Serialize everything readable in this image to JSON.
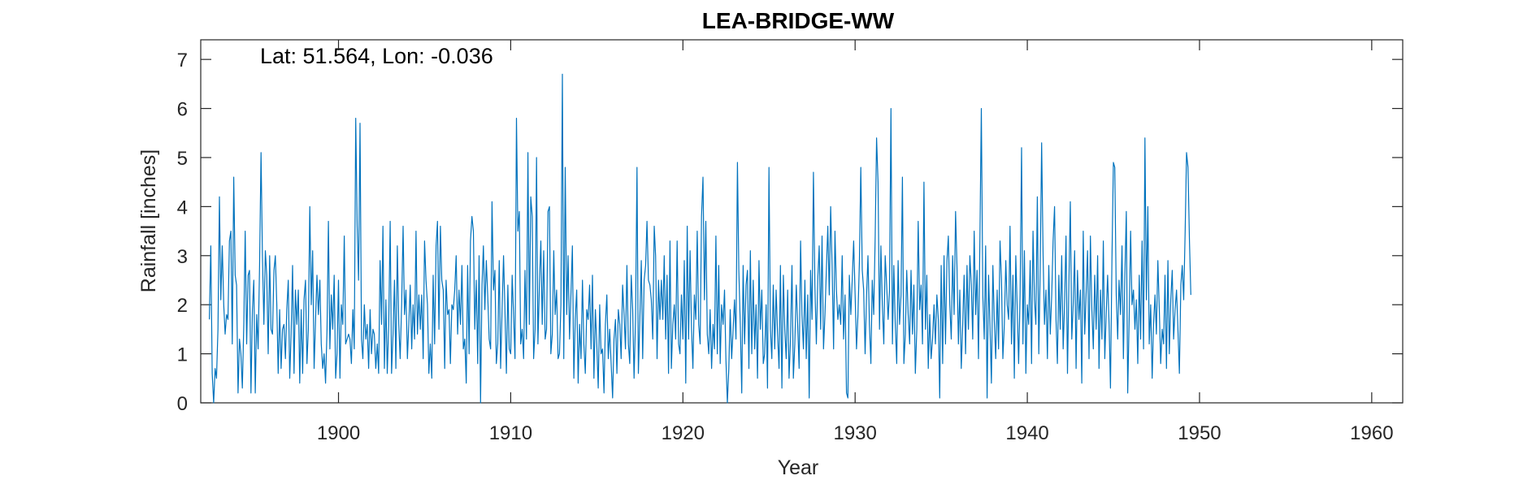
{
  "chart_data": {
    "type": "line",
    "title": "LEA-BRIDGE-WW",
    "annotation": "Lat: 51.564, Lon: -0.036",
    "xlabel": "Year",
    "ylabel": "Rainfall [inches]",
    "xlim": [
      1892.0,
      1961.8
    ],
    "ylim": [
      0,
      7.4
    ],
    "xticks": [
      1900,
      1910,
      1920,
      1930,
      1940,
      1950,
      1960
    ],
    "yticks": [
      0,
      1,
      2,
      3,
      4,
      5,
      6,
      7
    ],
    "grid": false,
    "series": [
      {
        "color": "#0072BD",
        "x_start": 1892.5,
        "x_step_years": 0.08333,
        "values": [
          1.7,
          3.2,
          0.6,
          0.0,
          0.7,
          0.5,
          1.5,
          4.2,
          2.1,
          3.2,
          2.0,
          1.4,
          1.8,
          1.7,
          3.3,
          3.5,
          1.2,
          4.6,
          2.6,
          2.4,
          0.2,
          1.3,
          1.0,
          0.3,
          1.6,
          3.5,
          1.2,
          2.6,
          2.7,
          0.2,
          1.9,
          2.5,
          0.2,
          1.8,
          1.1,
          2.8,
          5.1,
          3.0,
          1.6,
          3.1,
          2.6,
          1.0,
          3.0,
          1.5,
          1.4,
          2.7,
          3.0,
          2.0,
          0.6,
          1.9,
          0.7,
          1.5,
          1.6,
          0.9,
          1.9,
          2.5,
          0.5,
          1.4,
          2.8,
          0.6,
          2.3,
          1.6,
          2.3,
          0.4,
          1.9,
          0.6,
          2.1,
          2.5,
          0.8,
          1.5,
          4.0,
          2.0,
          3.1,
          0.7,
          1.7,
          2.6,
          1.8,
          2.5,
          1.2,
          0.7,
          1.0,
          0.4,
          1.5,
          3.7,
          1.1,
          2.2,
          1.5,
          2.6,
          0.5,
          1.0,
          2.5,
          0.5,
          2.0,
          1.6,
          3.4,
          1.2,
          1.3,
          1.4,
          1.3,
          0.8,
          1.9,
          1.1,
          5.8,
          3.6,
          2.5,
          5.7,
          1.3,
          0.9,
          2.0,
          1.3,
          1.6,
          0.7,
          1.9,
          1.0,
          1.5,
          1.4,
          0.7,
          1.2,
          0.6,
          2.9,
          1.6,
          3.6,
          0.7,
          2.1,
          0.6,
          1.6,
          3.7,
          0.6,
          1.4,
          2.5,
          0.7,
          3.2,
          1.6,
          0.9,
          2.0,
          3.6,
          1.8,
          2.3,
          0.9,
          1.6,
          2.4,
          1.1,
          2.0,
          1.3,
          3.5,
          1.4,
          2.2,
          1.5,
          2.2,
          0.9,
          3.3,
          2.5,
          2.0,
          0.6,
          1.2,
          0.5,
          2.6,
          1.2,
          3.2,
          3.7,
          1.5,
          3.6,
          2.5,
          2.3,
          0.7,
          2.5,
          1.8,
          1.9,
          0.8,
          2.0,
          1.9,
          2.3,
          3.0,
          1.4,
          2.3,
          1.6,
          2.8,
          1.1,
          1.3,
          0.4,
          2.8,
          1.0,
          3.3,
          3.8,
          3.5,
          1.5,
          2.5,
          0.8,
          3.0,
          0.0,
          2.4,
          3.2,
          1.9,
          2.9,
          2.2,
          1.3,
          1.1,
          4.1,
          2.3,
          2.7,
          0.8,
          1.2,
          2.9,
          0.7,
          1.9,
          3.0,
          1.9,
          0.6,
          2.4,
          1.1,
          1.0,
          2.6,
          1.8,
          0.9,
          5.8,
          3.5,
          3.9,
          1.2,
          1.5,
          0.9,
          2.7,
          1.3,
          5.1,
          1.6,
          4.2,
          3.8,
          0.9,
          1.5,
          5.0,
          1.2,
          2.4,
          3.3,
          1.6,
          3.1,
          1.3,
          1.5,
          3.9,
          4.0,
          1.0,
          1.4,
          3.1,
          1.8,
          2.3,
          0.9,
          1.0,
          2.0,
          6.7,
          0.9,
          4.8,
          1.8,
          3.0,
          1.3,
          2.2,
          3.2,
          0.5,
          1.7,
          2.3,
          0.4,
          1.6,
          0.9,
          2.5,
          1.2,
          0.6,
          1.9,
          1.7,
          2.4,
          1.1,
          2.6,
          0.5,
          1.9,
          1.2,
          0.3,
          2.0,
          1.0,
          1.1,
          0.2,
          1.6,
          2.2,
          0.9,
          1.5,
          0.8,
          0.1,
          1.3,
          1.7,
          0.6,
          1.9,
          1.6,
          0.9,
          2.4,
          1.8,
          1.1,
          2.8,
          1.2,
          0.8,
          2.6,
          1.9,
          0.5,
          1.7,
          4.8,
          0.6,
          1.7,
          2.9,
          0.9,
          2.5,
          2.8,
          3.7,
          2.5,
          2.4,
          2.1,
          1.3,
          3.6,
          3.0,
          0.9,
          2.5,
          1.7,
          2.5,
          1.7,
          3.0,
          1.3,
          2.6,
          0.6,
          3.3,
          0.7,
          1.6,
          2.0,
          1.3,
          3.3,
          1.2,
          1.0,
          2.2,
          1.3,
          2.9,
          0.4,
          3.6,
          1.3,
          3.1,
          1.5,
          0.7,
          2.2,
          1.7,
          3.5,
          1.6,
          1.2,
          3.8,
          4.6,
          2.1,
          3.7,
          1.4,
          1.0,
          1.9,
          0.7,
          1.6,
          1.1,
          3.4,
          1.0,
          2.8,
          0.8,
          2.0,
          1.6,
          2.3,
          0.9,
          0.0,
          0.7,
          1.9,
          0.9,
          1.5,
          2.1,
          1.3,
          4.9,
          2.7,
          1.6,
          0.2,
          2.8,
          1.2,
          2.4,
          2.7,
          0.7,
          3.1,
          1.0,
          2.5,
          1.1,
          2.0,
          0.5,
          2.9,
          1.5,
          2.3,
          0.8,
          1.0,
          2.0,
          0.3,
          4.8,
          1.5,
          0.9,
          2.4,
          1.1,
          2.3,
          1.4,
          0.7,
          2.8,
          0.3,
          2.6,
          1.5,
          0.9,
          2.3,
          0.5,
          1.3,
          2.8,
          0.5,
          1.2,
          2.4,
          1.6,
          0.7,
          3.3,
          1.8,
          1.1,
          2.5,
          0.9,
          2.2,
          0.1,
          2.7,
          1.7,
          4.7,
          2.4,
          1.2,
          2.5,
          3.2,
          1.5,
          3.4,
          1.1,
          1.8,
          2.7,
          3.6,
          2.2,
          4.0,
          2.8,
          1.1,
          3.5,
          2.3,
          1.7,
          2.0,
          1.6,
          3.0,
          1.3,
          2.2,
          0.2,
          0.1,
          2.6,
          1.8,
          2.5,
          3.3,
          2.2,
          1.1,
          1.8,
          2.9,
          4.8,
          2.7,
          2.3,
          1.0,
          2.2,
          3.0,
          1.6,
          0.8,
          2.5,
          1.8,
          3.4,
          5.4,
          4.5,
          1.5,
          3.2,
          2.0,
          1.2,
          3.0,
          2.4,
          1.7,
          2.3,
          6.0,
          1.2,
          2.8,
          1.6,
          0.8,
          2.9,
          1.6,
          2.2,
          4.6,
          0.8,
          1.4,
          2.7,
          1.8,
          1.2,
          2.7,
          1.4,
          2.4,
          0.6,
          1.5,
          3.7,
          1.9,
          2.4,
          1.2,
          4.5,
          1.5,
          2.6,
          0.7,
          1.8,
          0.9,
          1.3,
          2.0,
          1.2,
          2.2,
          1.7,
          0.1,
          2.8,
          0.8,
          3.0,
          1.2,
          2.9,
          3.4,
          2.0,
          1.3,
          3.0,
          1.8,
          3.9,
          2.8,
          1.2,
          2.3,
          0.7,
          1.6,
          2.6,
          1.0,
          2.8,
          1.5,
          3.0,
          2.4,
          1.3,
          3.5,
          1.8,
          2.7,
          0.9,
          3.4,
          6.0,
          2.2,
          1.3,
          3.2,
          0.1,
          2.6,
          1.6,
          0.4,
          2.8,
          1.7,
          0.9,
          2.3,
          1.1,
          3.3,
          2.5,
          0.9,
          1.6,
          2.9,
          2.0,
          1.7,
          3.6,
          1.2,
          2.6,
          0.5,
          3.0,
          1.9,
          0.8,
          2.2,
          5.2,
          1.2,
          3.1,
          0.6,
          2.0,
          1.6,
          2.9,
          0.8,
          3.5,
          2.1,
          1.6,
          4.2,
          1.0,
          2.7,
          5.3,
          3.0,
          1.6,
          2.3,
          0.9,
          2.8,
          1.4,
          2.2,
          3.3,
          4.0,
          1.7,
          0.8,
          2.6,
          1.5,
          3.0,
          1.1,
          2.0,
          3.4,
          0.6,
          2.4,
          4.1,
          1.3,
          2.0,
          3.1,
          0.7,
          2.7,
          1.7,
          2.3,
          0.4,
          3.5,
          1.4,
          2.2,
          3.1,
          0.9,
          3.4,
          1.9,
          1.1,
          2.6,
          1.5,
          3.0,
          0.7,
          2.3,
          1.3,
          3.3,
          0.9,
          1.8,
          2.6,
          1.6,
          0.3,
          2.9,
          4.9,
          4.8,
          2.2,
          1.3,
          2.5,
          1.8,
          3.2,
          0.9,
          2.6,
          3.9,
          0.2,
          1.7,
          3.5,
          2.0,
          2.3,
          1.5,
          2.1,
          0.8,
          2.6,
          1.3,
          3.3,
          1.1,
          5.4,
          2.1,
          4.0,
          1.2,
          2.0,
          0.5,
          1.6,
          2.2,
          1.4,
          2.9,
          1.9,
          0.8,
          1.5,
          1.2,
          2.6,
          0.7,
          2.9,
          1.0,
          2.1,
          2.7,
          1.3,
          1.9,
          2.3,
          1.5,
          0.6,
          2.4,
          2.8,
          2.1,
          3.5,
          5.1,
          4.8,
          3.3,
          2.2
        ]
      }
    ]
  }
}
